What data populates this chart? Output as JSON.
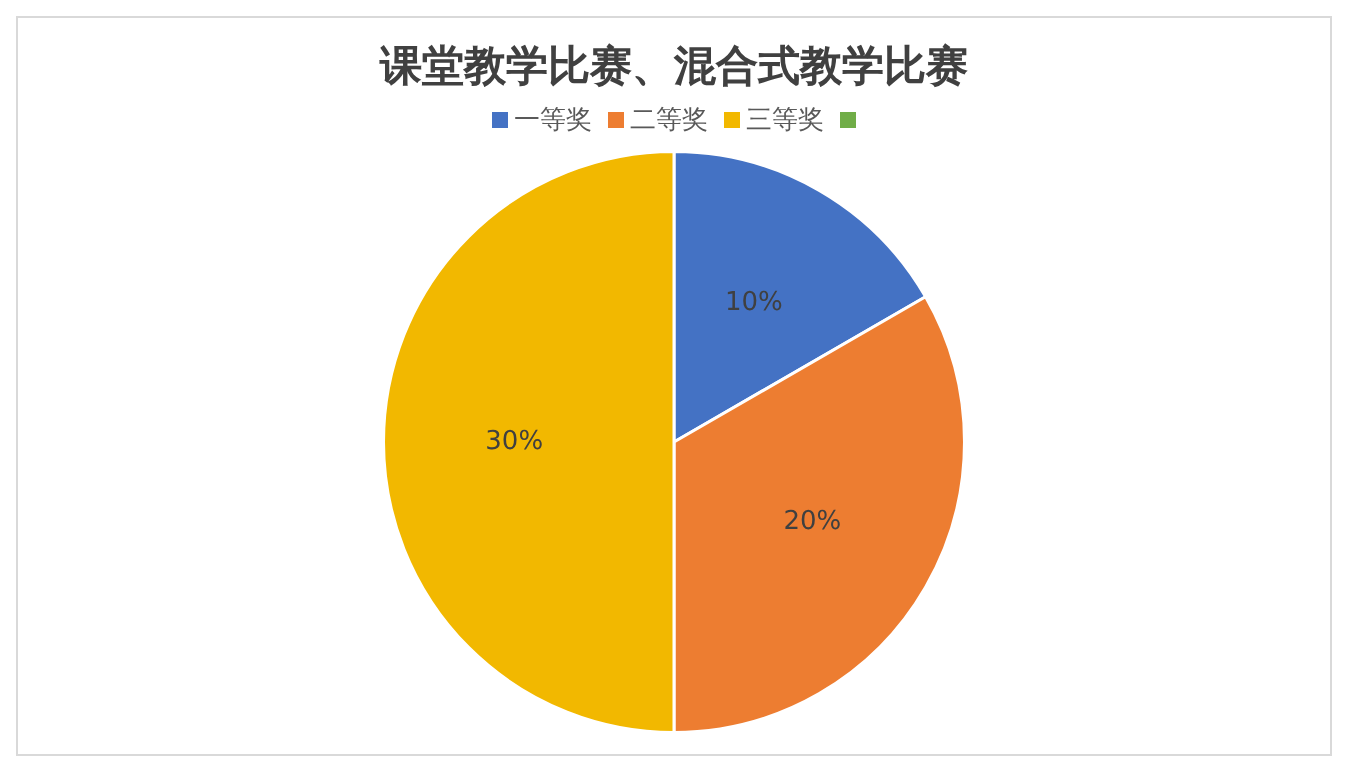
{
  "chart_data": {
    "type": "pie",
    "title": "课堂教学比赛、混合式教学比赛",
    "categories": [
      "一等奖",
      "二等奖",
      "三等奖",
      null
    ],
    "values": [
      10,
      20,
      30,
      null
    ],
    "value_labels": [
      "10%",
      "20%",
      "30%",
      null
    ],
    "colors": [
      "#4472c4",
      "#ed7d31",
      "#f2b800",
      "#70ad47"
    ],
    "legend": "top"
  }
}
